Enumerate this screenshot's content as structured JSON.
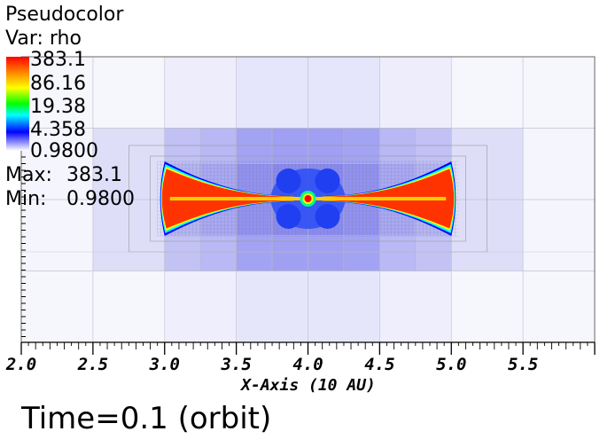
{
  "legend": {
    "title_line1": "Pseudocolor",
    "title_line2": "Var: rho",
    "colorbar_labels": [
      "383.1",
      "86.16",
      "19.38",
      "4.358",
      "0.9800"
    ],
    "max_label": "Max:",
    "max_value": "383.1",
    "min_label": "Min:",
    "min_value": "0.9800"
  },
  "time_label": "Time=0.1 (orbit)",
  "chart_data": {
    "type": "heatmap",
    "title": "",
    "variable": "rho",
    "xlabel": "X-Axis (10 AU)",
    "xlim": [
      2.0,
      6.0
    ],
    "x_ticks": [
      "2.0",
      "2.5",
      "3.0",
      "3.5",
      "4.0",
      "4.5",
      "5.0",
      "5.5"
    ],
    "value_range": {
      "min": 0.98,
      "max": 383.1
    },
    "color_scale": "log",
    "disk": {
      "center_x": 4.0,
      "inner_edge_x": 3.0,
      "outer_edge_x": 5.0,
      "center_peak": 383.1
    },
    "grid": "adaptive mesh refinement blocks shown"
  },
  "colors": {
    "high": "#ff0000",
    "mid": "#00ff00",
    "low": "#0000ff",
    "floor": "#ffffff"
  }
}
